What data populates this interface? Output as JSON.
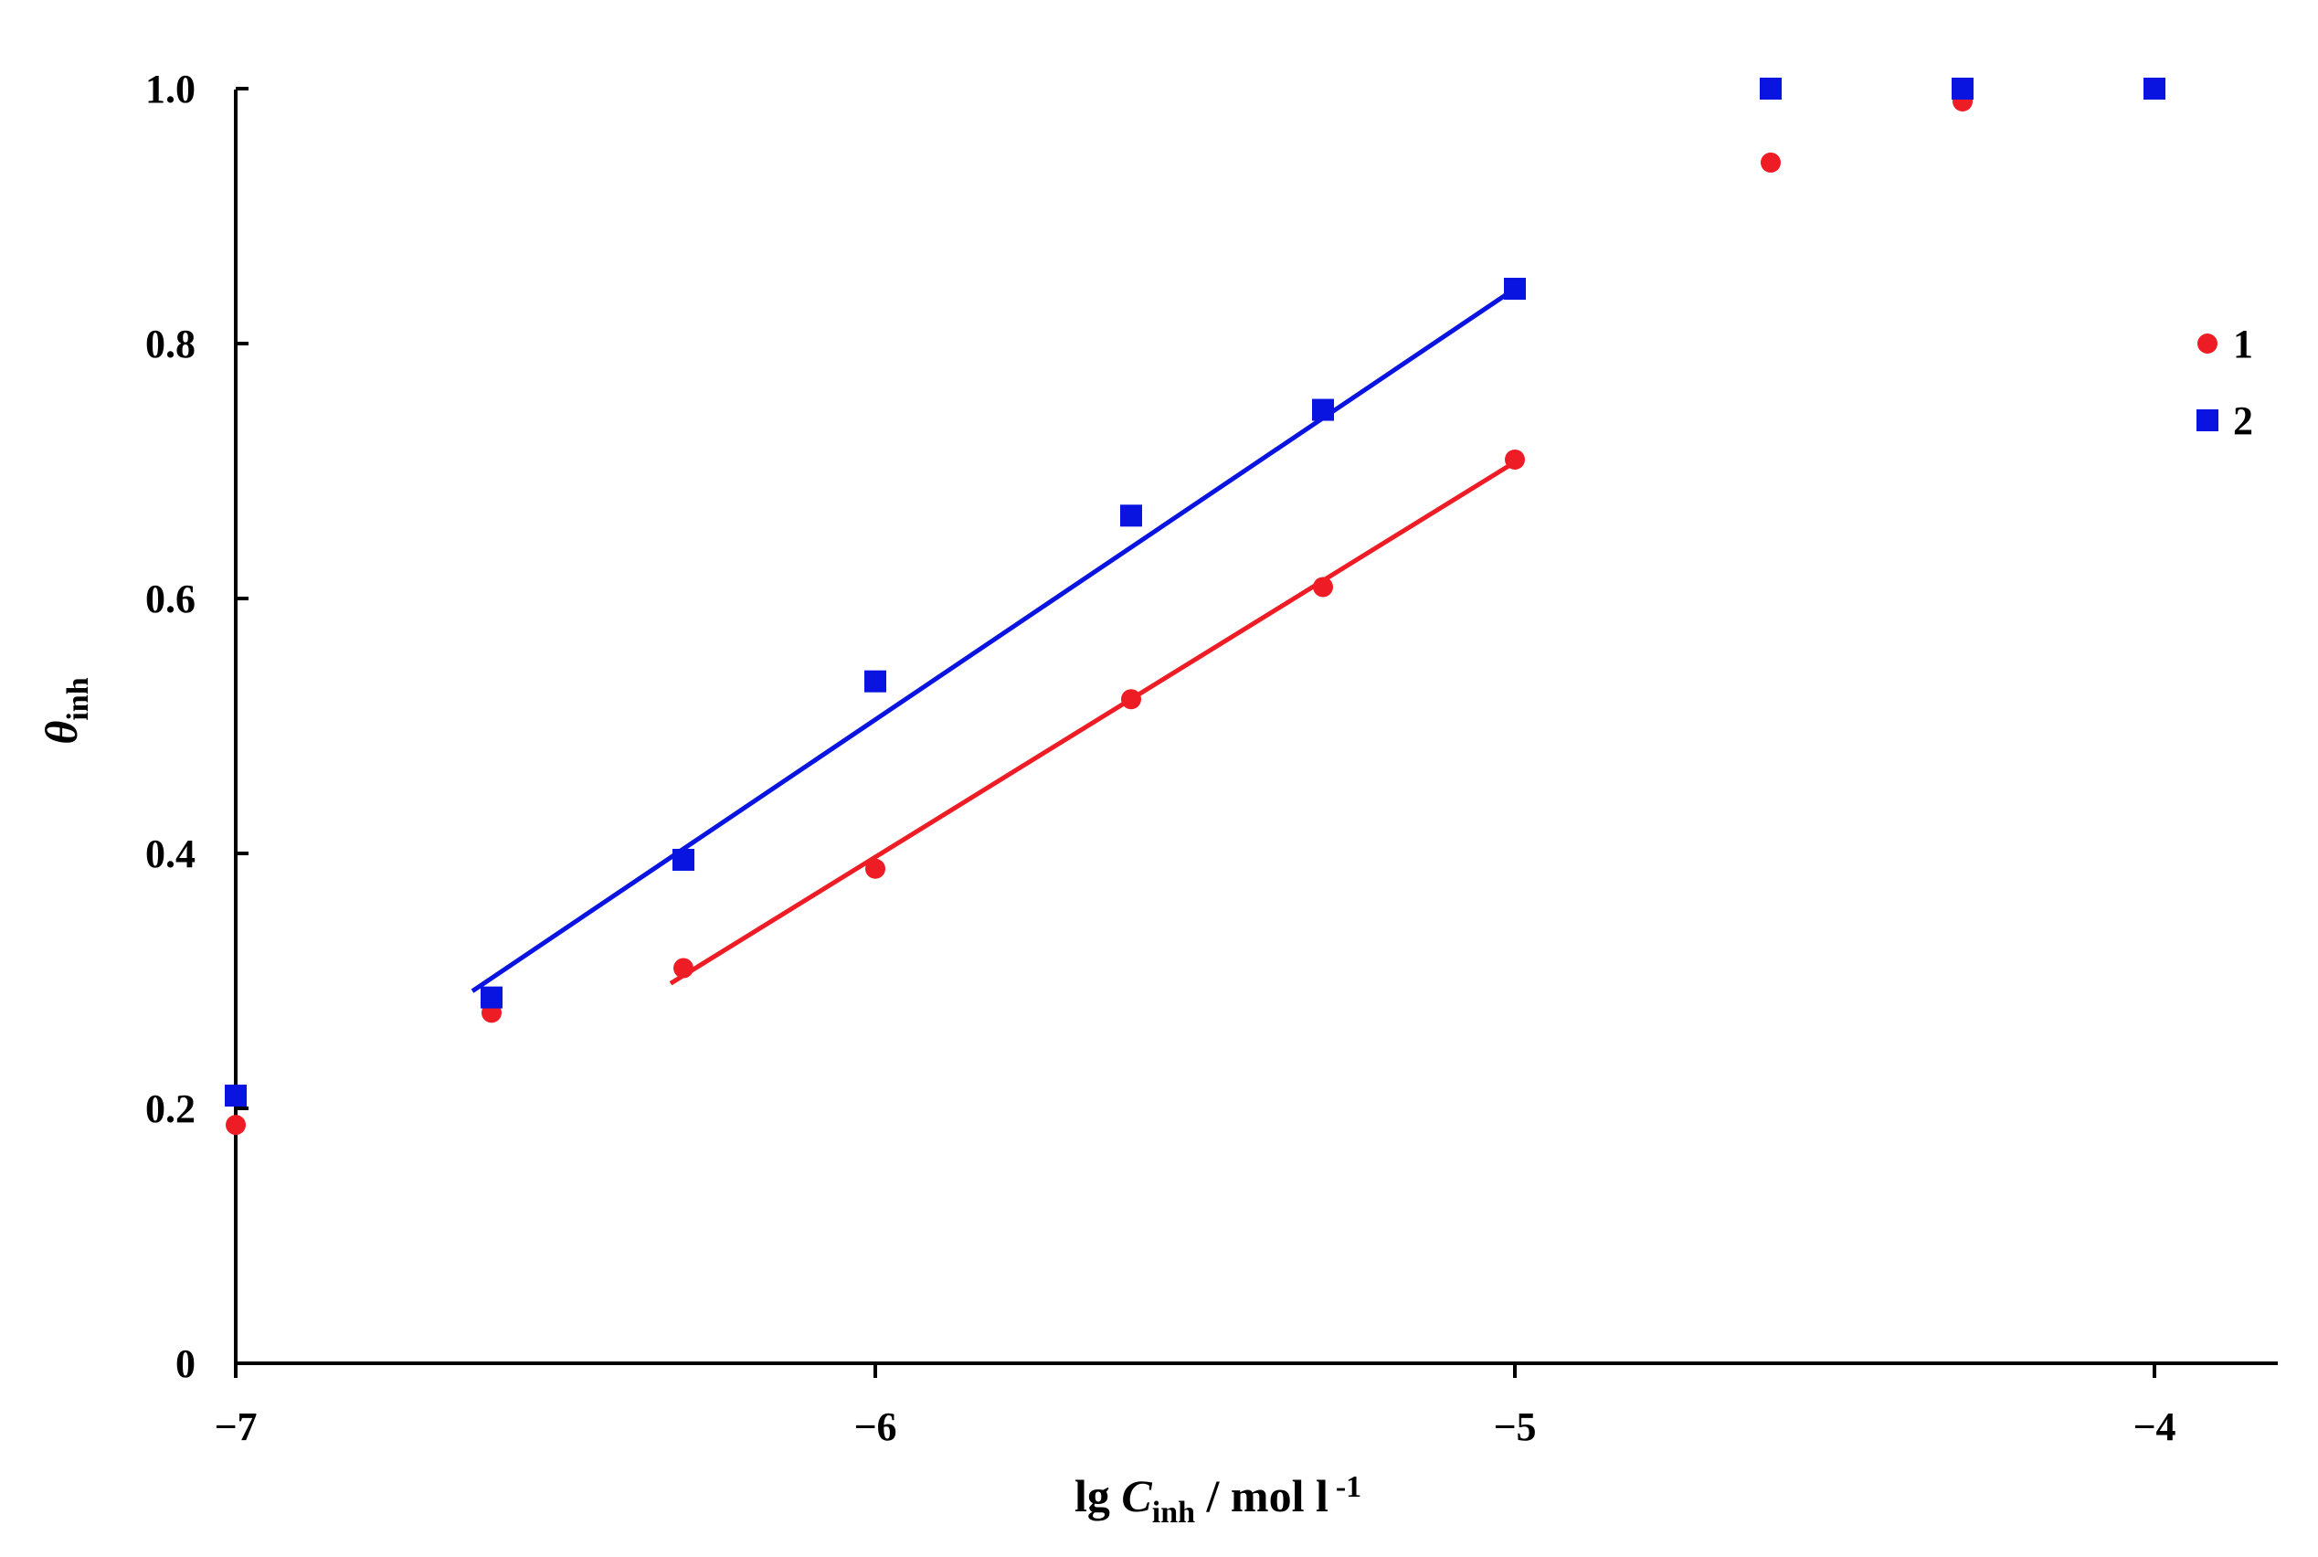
{
  "chart_data": {
    "type": "scatter",
    "title": "",
    "xlabel": {
      "prefix": "lg ",
      "symbol": "C",
      "subscript": "inh",
      "suffix": " / mol l",
      "superscript": "-1"
    },
    "ylabel": {
      "symbol": "θ",
      "subscript": "inh"
    },
    "xlim": [
      -7,
      -3.8
    ],
    "ylim": [
      0,
      1.0
    ],
    "x_ticks": [
      -7,
      -6,
      -5,
      -4
    ],
    "x_tick_labels": [
      "−7",
      "−6",
      "−5",
      "−4"
    ],
    "y_ticks": [
      0,
      0.2,
      0.4,
      0.6,
      0.8,
      1.0
    ],
    "y_tick_labels": [
      "0",
      "0.2",
      "0.4",
      "0.6",
      "0.8",
      "1.0"
    ],
    "grid": false,
    "legend_position": "right",
    "series": [
      {
        "name": "1",
        "marker": "circle",
        "color": "#ee1c25",
        "x": [
          -7,
          -6.6,
          -6.3,
          -6.0,
          -5.6,
          -5.3,
          -5.0,
          -4.6,
          -4.3
        ],
        "y": [
          0.187,
          0.275,
          0.31,
          0.388,
          0.521,
          0.609,
          0.709,
          0.942,
          0.99
        ],
        "fit_line": {
          "x": [
            -6.32,
            -5.0
          ],
          "y": [
            0.298,
            0.707
          ]
        }
      },
      {
        "name": "2",
        "marker": "square",
        "color": "#0a14e0",
        "x": [
          -7,
          -6.6,
          -6.3,
          -6.0,
          -5.6,
          -5.3,
          -5.0,
          -4.6,
          -4.3,
          -4.0
        ],
        "y": [
          0.21,
          0.287,
          0.395,
          0.535,
          0.665,
          0.748,
          0.843,
          1.0,
          1.0,
          1.0
        ],
        "fit_line": {
          "x": [
            -6.63,
            -5.0
          ],
          "y": [
            0.292,
            0.843
          ]
        }
      }
    ]
  }
}
